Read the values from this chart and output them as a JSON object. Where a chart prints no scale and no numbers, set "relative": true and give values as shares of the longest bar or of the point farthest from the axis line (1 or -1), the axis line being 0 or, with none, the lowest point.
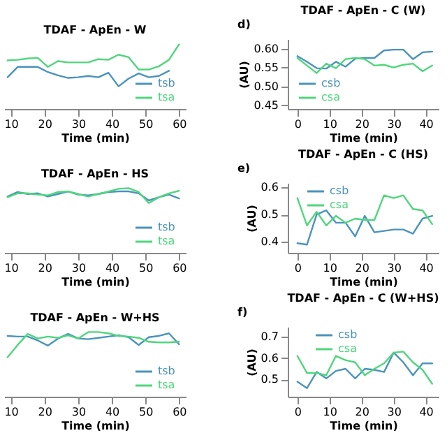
{
  "chart_data": [
    {
      "type": "line",
      "title": "TDAF - ApEn - W",
      "xlabel": "Time (min)",
      "relative": true,
      "tick_labels": "x",
      "legend": "bottom right",
      "xlim": [
        8,
        62
      ],
      "xticks": [
        10,
        20,
        30,
        40,
        50,
        60
      ],
      "x": [
        9,
        12,
        15,
        18,
        21,
        24,
        27,
        30,
        33,
        36,
        39,
        42,
        45,
        48,
        51,
        54,
        57,
        60
      ],
      "series": [
        {
          "name": "tsb",
          "color": "#4a93bd",
          "values": [
            0.49,
            0.65,
            0.65,
            0.65,
            0.57,
            0.52,
            0.48,
            0.49,
            0.51,
            0.49,
            0.56,
            0.35,
            0.47,
            0.55,
            0.49,
            0.51,
            0.59,
            null
          ]
        },
        {
          "name": "tsa",
          "color": "#4fd67c",
          "values": [
            0.75,
            0.76,
            0.78,
            0.79,
            0.65,
            0.74,
            0.72,
            0.72,
            0.72,
            0.77,
            0.76,
            0.84,
            0.8,
            0.61,
            0.61,
            0.66,
            0.76,
            1
          ]
        }
      ]
    },
    {
      "type": "line",
      "title": "TDAF - ApEn - C (W)",
      "xlabel": "Time (min)",
      "ylabel": "(AU)",
      "annotations": [
        "d)"
      ],
      "legend": "bottom left",
      "xlim": [
        -3,
        44
      ],
      "xticks": [
        0,
        10,
        20,
        30,
        40
      ],
      "ylim": [
        0.44,
        0.625
      ],
      "yticks": [
        {
          "value": 0.45,
          "label": "0.45"
        },
        {
          "value": 0.5,
          "label": "0.50"
        },
        {
          "value": 0.55,
          "label": "0.55"
        },
        {
          "value": 0.6,
          "label": "0.60"
        }
      ],
      "x": [
        0,
        3,
        6,
        9,
        12,
        15,
        18,
        21,
        24,
        27,
        30,
        33,
        36,
        39,
        42
      ],
      "series": [
        {
          "name": "csb",
          "color": "#4a93bd",
          "values": [
            0.58,
            0.565,
            0.548,
            0.547,
            0.565,
            0.552,
            0.573,
            0.575,
            0.575,
            0.595,
            0.597,
            0.597,
            0.572,
            0.59,
            0.592
          ]
        },
        {
          "name": "csa",
          "color": "#4fd67c",
          "values": [
            0.575,
            0.555,
            0.535,
            0.56,
            0.548,
            0.572,
            0.575,
            0.572,
            0.555,
            0.557,
            0.55,
            0.557,
            0.56,
            0.54,
            0.555
          ]
        }
      ]
    },
    {
      "type": "line",
      "title": "TDAF - ApEn - HS",
      "xlabel": "Time (min)",
      "relative": true,
      "tick_labels": "x",
      "legend": "bottom right",
      "xlim": [
        8,
        62
      ],
      "xticks": [
        10,
        20,
        30,
        40,
        50,
        60
      ],
      "x": [
        9,
        12,
        15,
        18,
        21,
        24,
        27,
        30,
        33,
        36,
        39,
        42,
        45,
        48,
        51,
        54,
        57,
        60
      ],
      "series": [
        {
          "name": "tsb",
          "color": "#4a93bd",
          "values": [
            0.87,
            0.94,
            0.91,
            0.92,
            0.87,
            0.91,
            0.95,
            0.9,
            0.89,
            0.91,
            0.94,
            0.95,
            0.95,
            0.92,
            0.81,
            0.86,
            0.9,
            0.84
          ]
        },
        {
          "name": "tsa",
          "color": "#4fd67c",
          "values": [
            0.86,
            0.92,
            0.92,
            0.9,
            0.89,
            0.94,
            0.95,
            0.91,
            0.87,
            0.91,
            0.95,
            0.99,
            1,
            0.94,
            0.77,
            0.86,
            0.92,
            0.96
          ]
        }
      ]
    },
    {
      "type": "line",
      "title": "TDAF - ApEn - C (HS)",
      "xlabel": "Time (min)",
      "ylabel": "(AU)",
      "annotations": [
        "e)"
      ],
      "legend": "top left",
      "xlim": [
        -3,
        44
      ],
      "xticks": [
        0,
        10,
        20,
        30,
        40
      ],
      "ylim": [
        0.36,
        0.615
      ],
      "yticks": [
        0.4,
        0.5,
        0.6
      ],
      "x": [
        0,
        3,
        6,
        9,
        12,
        15,
        18,
        21,
        24,
        27,
        30,
        33,
        36,
        39,
        42
      ],
      "series": [
        {
          "name": "csb",
          "color": "#4a93bd",
          "values": [
            0.395,
            0.39,
            0.5,
            0.515,
            0.47,
            0.47,
            0.42,
            0.495,
            0.435,
            0.44,
            0.445,
            0.445,
            0.43,
            0.485,
            0.495
          ]
        },
        {
          "name": "csa",
          "color": "#4fd67c",
          "values": [
            0.56,
            0.46,
            0.51,
            0.46,
            0.495,
            0.47,
            0.485,
            0.48,
            0.48,
            0.57,
            0.56,
            0.57,
            0.52,
            0.515,
            0.465
          ]
        }
      ]
    },
    {
      "type": "line",
      "title": "TDAF - ApEn - W+HS",
      "xlabel": "Time (min)",
      "relative": true,
      "tick_labels": "x",
      "legend": "bottom right",
      "xlim": [
        8,
        62
      ],
      "xticks": [
        10,
        20,
        30,
        40,
        50,
        60
      ],
      "x": [
        9,
        12,
        15,
        18,
        21,
        24,
        27,
        30,
        33,
        36,
        39,
        42,
        45,
        48,
        51,
        54,
        57,
        60
      ],
      "series": [
        {
          "name": "tsb",
          "color": "#4a93bd",
          "values": [
            0.94,
            0.93,
            0.93,
            0.87,
            0.79,
            0.9,
            0.97,
            0.9,
            0.89,
            0.91,
            0.93,
            0.95,
            0.92,
            0.8,
            0.92,
            0.94,
            0.98,
            0.81
          ]
        },
        {
          "name": "tsa",
          "color": "#4fd67c",
          "values": [
            0.61,
            0.8,
            0.97,
            0.9,
            0.93,
            0.91,
            0.95,
            0.9,
            1,
            1,
            0.98,
            0.94,
            0.93,
            0.91,
            0.85,
            0.84,
            0.84,
            0.85
          ]
        }
      ]
    },
    {
      "type": "line",
      "title": "TDAF - ApEn - C (W+HS)",
      "xlabel": "Time (min)",
      "ylabel": "(AU)",
      "annotations": [
        "f)"
      ],
      "legend": "top left",
      "xlim": [
        -3,
        44
      ],
      "xticks": [
        0,
        10,
        20,
        30,
        40
      ],
      "ylim": [
        0.42,
        0.745
      ],
      "yticks": [
        0.5,
        0.6,
        0.7
      ],
      "x": [
        0,
        3,
        6,
        9,
        12,
        15,
        18,
        21,
        24,
        27,
        30,
        33,
        36,
        39,
        42
      ],
      "series": [
        {
          "name": "csb",
          "color": "#4a93bd",
          "values": [
            0.49,
            0.46,
            0.535,
            0.505,
            0.54,
            0.55,
            0.505,
            0.55,
            0.545,
            0.535,
            0.625,
            0.58,
            0.52,
            0.575,
            0.575
          ]
        },
        {
          "name": "csa",
          "color": "#4fd67c",
          "values": [
            0.61,
            0.53,
            0.53,
            0.52,
            0.61,
            0.59,
            0.58,
            0.52,
            0.55,
            0.575,
            0.625,
            0.63,
            0.58,
            0.545,
            0.48
          ]
        }
      ]
    }
  ]
}
